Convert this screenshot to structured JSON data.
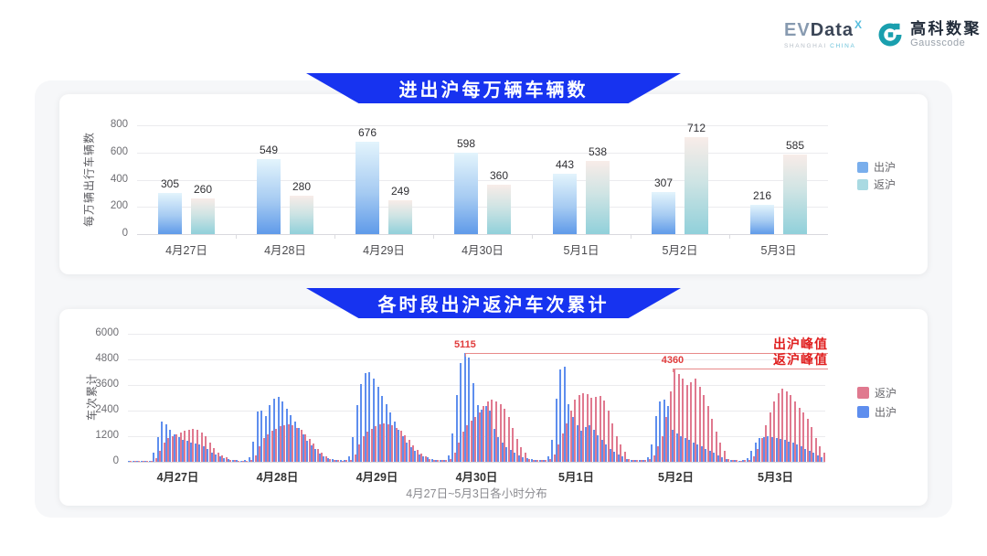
{
  "header": {
    "evdata": {
      "ev": "EV",
      "data": "Data",
      "x": "X",
      "sub_left": "SHANGHAI",
      "sub_right": "CHINA"
    },
    "gausscode": {
      "cn": "高科数聚",
      "en": "Gausscode"
    }
  },
  "colors": {
    "banner_blue": "#1733f0",
    "chu_bar_top": "#e3f4fc",
    "chu_bar_mid": "#a6cbf2",
    "chu_bar_bottom": "#5f9ae9",
    "fan_bar_top": "#f8ece8",
    "fan_bar_mid": "#cfe4e4",
    "fan_bar_bottom": "#90d0da",
    "hour_chu_blue": "#5e8eee",
    "hour_fan_pink": "#e0798f",
    "annotation_red": "#e01f1f",
    "annotation_line_red": "#e88989",
    "peak_value_red": "#e03c3c",
    "legend_chu_top": "#79aeec",
    "legend_fan_top": "#a9dae2"
  },
  "chart_data": [
    {
      "type": "bar",
      "title": "进出沪每万辆车辆数",
      "ylabel": "每万辆出行车辆数",
      "ylim": [
        0,
        800
      ],
      "yticks": [
        0,
        200,
        400,
        600,
        800
      ],
      "grid": true,
      "legend_position": "right",
      "categories": [
        "4月27日",
        "4月28日",
        "4月29日",
        "4月30日",
        "5月1日",
        "5月2日",
        "5月3日"
      ],
      "series": [
        {
          "name": "出沪",
          "values": [
            305,
            549,
            676,
            598,
            443,
            307,
            216
          ]
        },
        {
          "name": "返沪",
          "values": [
            260,
            280,
            249,
            360,
            538,
            712,
            585
          ]
        }
      ],
      "legend": [
        {
          "label": "出沪",
          "color": "#79aeec"
        },
        {
          "label": "返沪",
          "color": "#a9dae2"
        }
      ]
    },
    {
      "type": "bar",
      "title": "各时段出沪返沪车次累计",
      "ylabel": "车次累计",
      "xlabel": "4月27日~5月3日各小时分布",
      "ylim": [
        0,
        6000
      ],
      "yticks": [
        0,
        1200,
        2400,
        3600,
        4800,
        6000
      ],
      "grid": true,
      "legend_position": "right",
      "categories": [
        "4月27日",
        "4月28日",
        "4月29日",
        "4月30日",
        "5月1日",
        "5月2日",
        "5月3日"
      ],
      "series": [
        {
          "name": "出沪",
          "hourly": [
            [
              60,
              45,
              40,
              35,
              30,
              60,
              420,
              1150,
              1900,
              1750,
              1500,
              1280,
              1150,
              1050,
              980,
              900,
              850,
              800,
              720,
              600,
              450,
              350,
              250,
              160
            ],
            [
              130,
              90,
              65,
              55,
              65,
              220,
              950,
              2350,
              2400,
              2150,
              2650,
              2950,
              3050,
              2820,
              2500,
              2200,
              1900,
              1600,
              1300,
              1000,
              780,
              580,
              400,
              260
            ],
            [
              160,
              110,
              85,
              70,
              85,
              260,
              1150,
              2650,
              3650,
              4150,
              4200,
              3900,
              3500,
              3100,
              2700,
              2300,
              1900,
              1520,
              1200,
              920,
              700,
              520,
              360,
              250
            ],
            [
              200,
              130,
              100,
              85,
              105,
              320,
              1350,
              3150,
              4650,
              5115,
              4900,
              3700,
              2650,
              2450,
              2600,
              2380,
              1550,
              1150,
              900,
              700,
              550,
              420,
              310,
              210
            ],
            [
              180,
              120,
              95,
              80,
              95,
              260,
              1050,
              2950,
              4350,
              4450,
              2700,
              2100,
              1700,
              1450,
              1620,
              1700,
              1500,
              1250,
              1020,
              810,
              620,
              460,
              350,
              250
            ],
            [
              150,
              100,
              80,
              70,
              85,
              210,
              820,
              2150,
              2820,
              2920,
              2600,
              1520,
              1320,
              1220,
              1120,
              1020,
              920,
              820,
              720,
              620,
              520,
              410,
              310,
              210
            ],
            [
              120,
              85,
              65,
              55,
              65,
              160,
              520,
              920,
              1120,
              1160,
              1210,
              1160,
              1110,
              1060,
              1010,
              960,
              900,
              810,
              720,
              620,
              510,
              410,
              310,
              200
            ]
          ]
        },
        {
          "name": "返沪",
          "hourly": [
            [
              50,
              40,
              35,
              30,
              30,
              45,
              160,
              520,
              900,
              1100,
              1220,
              1280,
              1380,
              1450,
              1520,
              1560,
              1500,
              1380,
              1180,
              900,
              640,
              450,
              300,
              200
            ],
            [
              100,
              75,
              60,
              50,
              55,
              90,
              320,
              720,
              1100,
              1300,
              1460,
              1560,
              1660,
              1720,
              1760,
              1700,
              1600,
              1480,
              1300,
              1080,
              840,
              600,
              410,
              260
            ],
            [
              120,
              90,
              70,
              60,
              65,
              105,
              360,
              820,
              1220,
              1420,
              1560,
              1660,
              1760,
              1800,
              1760,
              1700,
              1590,
              1450,
              1250,
              1010,
              790,
              560,
              390,
              260
            ],
            [
              150,
              105,
              85,
              70,
              85,
              130,
              420,
              920,
              1420,
              1720,
              1920,
              2120,
              2320,
              2620,
              2820,
              2900,
              2840,
              2700,
              2480,
              2080,
              1580,
              1080,
              700,
              410
            ],
            [
              140,
              100,
              80,
              70,
              85,
              125,
              360,
              820,
              1320,
              1820,
              2420,
              2920,
              3120,
              3220,
              3160,
              3020,
              3060,
              3100,
              2880,
              2400,
              1800,
              1220,
              800,
              460
            ],
            [
              130,
              95,
              75,
              65,
              75,
              115,
              320,
              720,
              1220,
              2120,
              3320,
              4360,
              4120,
              3920,
              3620,
              3720,
              3880,
              3520,
              3120,
              2620,
              2020,
              1420,
              920,
              520
            ],
            [
              110,
              80,
              65,
              55,
              65,
              105,
              260,
              620,
              1120,
              1720,
              2320,
              2820,
              3220,
              3420,
              3310,
              3110,
              2820,
              2520,
              2310,
              2010,
              1610,
              1110,
              710,
              410
            ]
          ]
        }
      ],
      "legend": [
        {
          "label": "返沪",
          "color": "#e0798f"
        },
        {
          "label": "出沪",
          "color": "#5e8eee"
        }
      ],
      "annotations": [
        {
          "name": "出沪峰值",
          "value": 5115,
          "value_label": "5115",
          "day_index": 3,
          "hour": 9
        },
        {
          "name": "返沪峰值",
          "value": 4360,
          "value_label": "4360",
          "day_index": 5,
          "hour": 11
        }
      ]
    }
  ]
}
